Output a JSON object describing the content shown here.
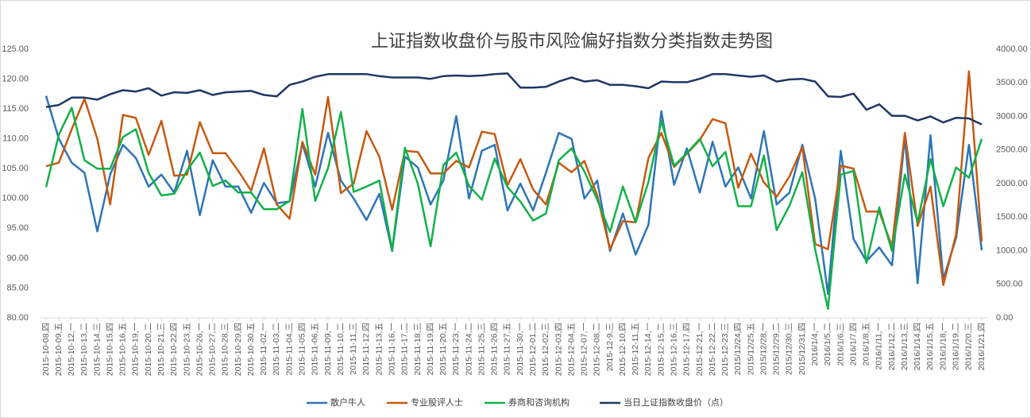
{
  "chart_data": {
    "type": "line",
    "title": "上证指数收盘价与股市风险偏好指数分类指数走势图",
    "categories": [
      "2015-10-08,四",
      "2015-10-09,五",
      "2015-10-12,一",
      "2015-10-13,二",
      "2015-10-14,三",
      "2015-10-15,四",
      "2015-10-16,五",
      "2015-10-19,一",
      "2015-10-20,二",
      "2015-10-21,三",
      "2015-10-22,四",
      "2015-10-23,五",
      "2015-10-26,一",
      "2015-10-27,二",
      "2015-10-28,三",
      "2015-10-29,四",
      "2015-10-30,五",
      "2015-11-02,一",
      "2015-11-03,二",
      "2015-11-04,三",
      "2015-11-05,四",
      "2015-11-06,五",
      "2015-11-09,一",
      "2015-11-10,二",
      "2015-11-11,三",
      "2015-11-12,四",
      "2015-11-13,五",
      "2015-11-16,一",
      "2015-11-17,二",
      "2015-11-18,三",
      "2015-11-19,四",
      "2015-11-20,五",
      "2015-11-23,一",
      "2015-11-24,二",
      "2015-11-25,三",
      "2015-11-26,四",
      "2015-11-27,五",
      "2015-11-30,一",
      "2015-12-01,二",
      "2015-12-02,三",
      "2015-12-03,四",
      "2015-12-04,五",
      "2015-12-07,一",
      "2015-12-08,二",
      "2015-12-9,三",
      "2015-12-10,四",
      "2015-12-11,五",
      "2015-12-14,一",
      "2015-12-15,二",
      "2015-12-16,三",
      "2015-12-17,四",
      "2015-12-21,一",
      "2015-12-22,二",
      "2015-12-23,三",
      "2015/12/24,四",
      "2015/12/25,五",
      "2015/12/28,一",
      "2015/12/29,二",
      "2015/12/30,三",
      "2015/12/31,四",
      "2016/1/4,一",
      "2016/1/5,二",
      "2016/1/6,三",
      "2016/1/7,四",
      "2016/1/8,五",
      "2016/1/11,一",
      "2016/1/12,二",
      "2016/1/13,三",
      "2016/1/14,四",
      "2016/1/15,五",
      "2016/1/18,一",
      "2016/1/19,二",
      "2016/1/20,三",
      "2016/1/21,四"
    ],
    "series": [
      {
        "name": "散户牛人",
        "color": "#2e75b6",
        "values": [
          117.2,
          110,
          106,
          104.3,
          94.5,
          104,
          109,
          106.8,
          102,
          104,
          101,
          108,
          97.2,
          106.4,
          102,
          102,
          97.6,
          102.6,
          99.2,
          99.5,
          109.2,
          102,
          111,
          103,
          100,
          96.4,
          100.8,
          91.2,
          107,
          105.2,
          99,
          103,
          113.8,
          100,
          108,
          109,
          98,
          102.5,
          98,
          104.3,
          111,
          110,
          100,
          103,
          91.2,
          97.5,
          90.6,
          95.6,
          114.6,
          102.3,
          108.4,
          101,
          109.5,
          102,
          105.2,
          100,
          111.3,
          99,
          101,
          109,
          100,
          84,
          108,
          93.2,
          89.5,
          91.8,
          88.8,
          110.3,
          85.8,
          110.6,
          86.5,
          93.4,
          109,
          91.3
        ]
      },
      {
        "name": "专业股评人士",
        "color": "#c55a11",
        "values": [
          105.4,
          106,
          111.6,
          116.7,
          110,
          99,
          114,
          113.5,
          107.3,
          113,
          103.8,
          104,
          112.8,
          107.6,
          107.6,
          104.6,
          101.3,
          108.4,
          99,
          96.6,
          109.5,
          104,
          117,
          100.9,
          102.5,
          111.3,
          107,
          98.1,
          108,
          107.8,
          104.2,
          104.2,
          106.3,
          105.2,
          111.2,
          110.8,
          102.2,
          106.6,
          101.5,
          99,
          106,
          104.4,
          106.3,
          100.5,
          91.5,
          96.2,
          96,
          106.8,
          111,
          105.3,
          107.5,
          109.8,
          113.3,
          112.6,
          101.8,
          107.5,
          102.7,
          100.3,
          103.7,
          108.6,
          92.4,
          91.5,
          105.5,
          105,
          97.8,
          97.8,
          92,
          111,
          95.4,
          102,
          85.5,
          94,
          121.3,
          92.8
        ]
      },
      {
        "name": "券商和咨询机构",
        "color": "#13b14a",
        "values": [
          101.9,
          110.7,
          115.2,
          106.4,
          105,
          105,
          110.3,
          111.6,
          104.3,
          100.5,
          100.8,
          104.7,
          107.7,
          102.1,
          103,
          101,
          101,
          98.2,
          98.2,
          99.6,
          115,
          99.6,
          105.1,
          114.5,
          101.1,
          102,
          103,
          91.4,
          108.5,
          102.5,
          92,
          105.6,
          107.7,
          102.1,
          99.8,
          106.7,
          101.9,
          99.5,
          96.3,
          97.5,
          106.4,
          108.4,
          104.5,
          99.8,
          94.4,
          102,
          96,
          102.8,
          113,
          105.5,
          107.6,
          110,
          105.4,
          107.8,
          98.7,
          98.7,
          107.2,
          94.7,
          98.8,
          104.4,
          91.5,
          81.5,
          104,
          104.6,
          89.2,
          98.5,
          91.2,
          104,
          96,
          106.6,
          98.7,
          105.2,
          103.5,
          110
        ]
      },
      {
        "name": "当日上证指数收盘价（点）",
        "color": "#1f3864",
        "axis": "y2",
        "values": [
          3140,
          3170,
          3280,
          3280,
          3250,
          3330,
          3390,
          3370,
          3420,
          3310,
          3360,
          3350,
          3390,
          3320,
          3360,
          3370,
          3380,
          3320,
          3300,
          3470,
          3520,
          3590,
          3630,
          3630,
          3630,
          3630,
          3600,
          3580,
          3580,
          3580,
          3560,
          3600,
          3610,
          3600,
          3610,
          3630,
          3640,
          3430,
          3430,
          3440,
          3520,
          3580,
          3520,
          3540,
          3470,
          3470,
          3450,
          3420,
          3520,
          3510,
          3510,
          3560,
          3630,
          3630,
          3610,
          3590,
          3610,
          3520,
          3550,
          3560,
          3520,
          3300,
          3290,
          3340,
          3100,
          3180,
          3010,
          3010,
          2940,
          3000,
          2910,
          2980,
          2970,
          2880
        ]
      }
    ],
    "ylim": [
      80,
      125
    ],
    "yticks": [
      {
        "value": 80,
        "label": "80.00"
      },
      {
        "value": 85,
        "label": "85.00"
      },
      {
        "value": 90,
        "label": "90.00"
      },
      {
        "value": 95,
        "label": "95.00"
      },
      {
        "value": 100,
        "label": "100.00"
      },
      {
        "value": 105,
        "label": "105.00"
      },
      {
        "value": 110,
        "label": "110.00"
      },
      {
        "value": 115,
        "label": "115.00"
      },
      {
        "value": 120,
        "label": "120.00"
      },
      {
        "value": 125,
        "label": "125.00"
      }
    ],
    "y2lim": [
      0,
      4000
    ],
    "y2ticks": [
      {
        "value": 0,
        "label": "0.00"
      },
      {
        "value": 500,
        "label": "500.00"
      },
      {
        "value": 1000,
        "label": "1000.00"
      },
      {
        "value": 1500,
        "label": "1500.00"
      },
      {
        "value": 2000,
        "label": "2000.00"
      },
      {
        "value": 2500,
        "label": "2500.00"
      },
      {
        "value": 3000,
        "label": "3000.00"
      },
      {
        "value": 3500,
        "label": "3500.00"
      },
      {
        "value": 4000,
        "label": "4000.00"
      }
    ],
    "legend": "bottom"
  }
}
